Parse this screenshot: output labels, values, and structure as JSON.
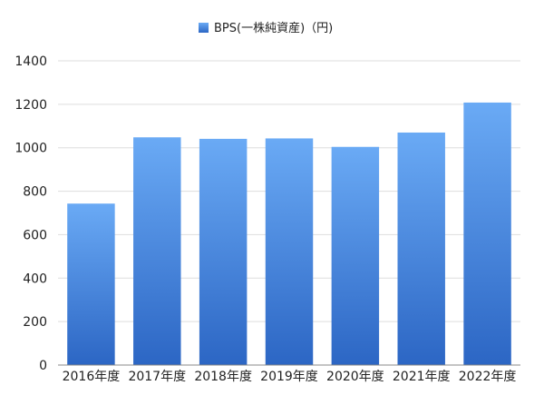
{
  "chart_data": {
    "type": "bar",
    "title": "",
    "xlabel": "",
    "ylabel": "",
    "categories": [
      "2016年度",
      "2017年度",
      "2018年度",
      "2019年度",
      "2020年度",
      "2021年度",
      "2022年度"
    ],
    "series": [
      {
        "name": "BPS(一株純資産)（円)",
        "values": [
          743,
          1048,
          1041,
          1043,
          1004,
          1070,
          1208
        ],
        "color_top": "#6aaaf5",
        "color_bottom": "#2c66c4"
      }
    ],
    "ylim": [
      0,
      1400
    ],
    "yticks": [
      0,
      200,
      400,
      600,
      800,
      1000,
      1200,
      1400
    ],
    "grid": true,
    "legend_position": "top-center",
    "gridline_color": "#dddddd",
    "axis_color": "#888888"
  }
}
